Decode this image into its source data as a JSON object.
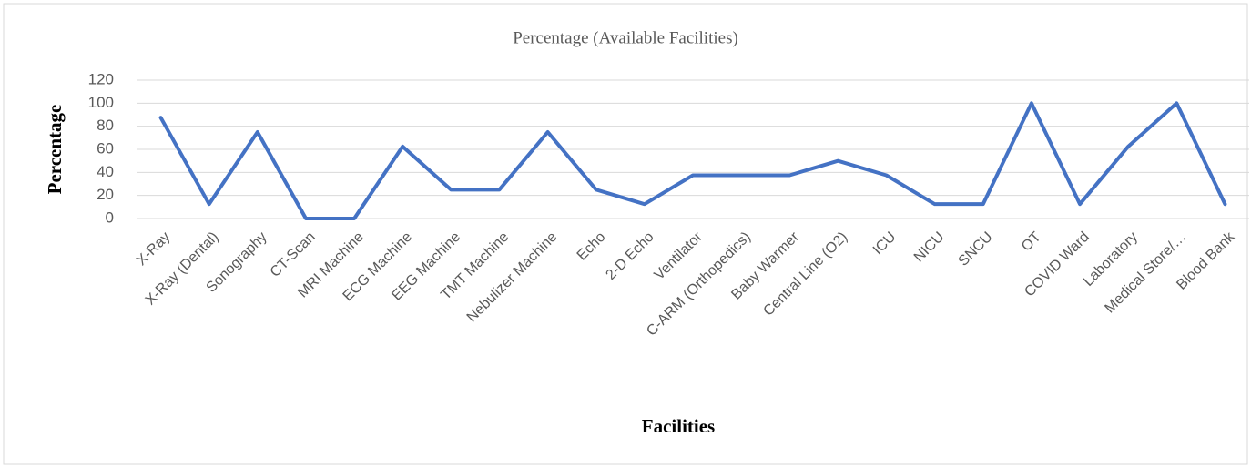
{
  "chart_data": {
    "type": "line",
    "title": "Percentage (Available Facilities)",
    "x_label": "Facilities",
    "y_label": "Percentage",
    "categories": [
      "X-Ray",
      "X-Ray (Dental)",
      "Sonography",
      "CT-Scan",
      "MRI Machine",
      "ECG Machine",
      "EEG Machine",
      "TMT Machine",
      "Nebulizer Machine",
      "Echo",
      "2-D Echo",
      "Ventilator",
      "C-ARM (Orthopedics)",
      "Baby Warmer",
      "Central Line (O2)",
      "ICU",
      "NICU",
      "SNCU",
      "OT",
      "COVID Ward",
      "Laboratory",
      "Medical Store/…",
      "Blood Bank"
    ],
    "values": [
      87.5,
      12.5,
      75,
      0,
      0,
      62.5,
      25,
      25,
      75,
      25,
      12.5,
      37.5,
      37.5,
      37.5,
      50,
      37.5,
      12.5,
      12.5,
      100,
      12.5,
      62.5,
      100,
      12.5
    ],
    "color": "#4472c4",
    "ylim": [
      0,
      120
    ],
    "yticks": [
      0,
      20,
      40,
      60,
      80,
      100,
      120
    ],
    "grid": true
  }
}
